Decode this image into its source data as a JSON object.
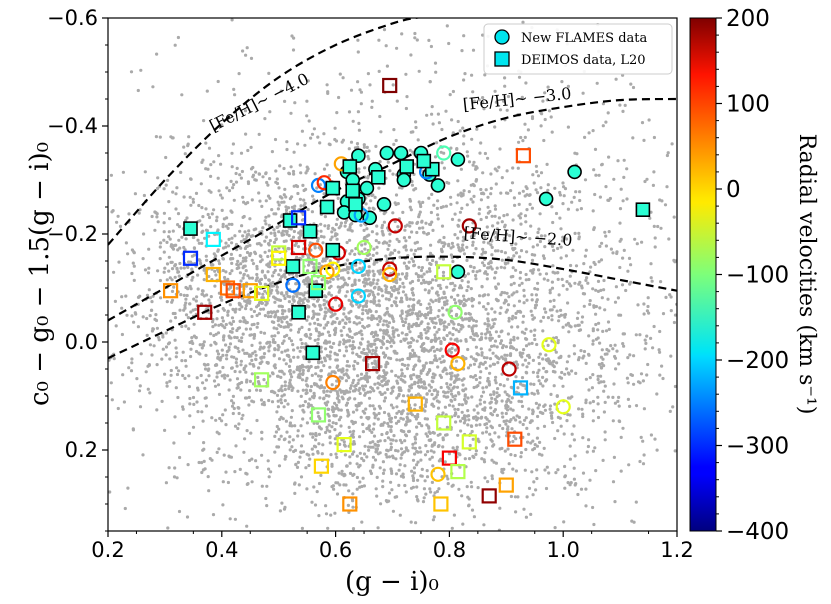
{
  "chart_data": {
    "type": "scatter",
    "xlabel": "(g − i)₀",
    "ylabel": "c₀ − g₀ − 1.5(g − i)₀",
    "xlim": [
      0.2,
      1.2
    ],
    "ylim": [
      0.35,
      -0.6
    ],
    "x_ticks": [
      0.2,
      0.4,
      0.6,
      0.8,
      1.0,
      1.2
    ],
    "x_tick_labels": [
      "0.2",
      "0.4",
      "0.6",
      "0.8",
      "1.0",
      "1.2"
    ],
    "y_ticks": [
      -0.6,
      -0.4,
      -0.2,
      0.0,
      0.2
    ],
    "y_tick_labels": [
      "−0.6",
      "−0.4",
      "−0.2",
      "0.0",
      "0.2"
    ],
    "colorbar": {
      "label": "Radial velocities (km s⁻¹)",
      "range": [
        -400,
        200
      ],
      "ticks": [
        200,
        100,
        0,
        -100,
        -200,
        -300,
        -400
      ],
      "tick_labels": [
        "200",
        "100",
        "0",
        "−100",
        "−200",
        "−300",
        "−400"
      ],
      "colormap": "jet"
    },
    "legend": {
      "position": "top-right",
      "entries": [
        {
          "label": "New FLAMES data",
          "marker": "circle",
          "color": "#00e5ee"
        },
        {
          "label": "DEIMOS data, L20",
          "marker": "square",
          "color": "#00e5ee"
        }
      ]
    },
    "annotations": [
      {
        "text": "[Fe/H]∼ −4.0",
        "x": 0.47,
        "y": -0.435,
        "rotation": -27
      },
      {
        "text": "[Fe/H]∼ −3.0",
        "x": 0.92,
        "y": -0.44,
        "rotation": -6
      },
      {
        "text": "[Fe/H]∼ −2.0",
        "x": 0.92,
        "y": -0.185,
        "rotation": 4
      }
    ],
    "isochrones": [
      {
        "name": "feh_m4",
        "x": [
          0.2,
          0.3,
          0.4,
          0.5,
          0.6,
          0.7,
          0.75
        ],
        "y": [
          -0.18,
          -0.3,
          -0.405,
          -0.49,
          -0.55,
          -0.59,
          -0.602
        ]
      },
      {
        "name": "feh_m3",
        "x": [
          0.2,
          0.3,
          0.4,
          0.5,
          0.6,
          0.7,
          0.8,
          0.9,
          1.0,
          1.1,
          1.2
        ],
        "y": [
          -0.04,
          -0.1,
          -0.16,
          -0.22,
          -0.28,
          -0.33,
          -0.38,
          -0.415,
          -0.435,
          -0.448,
          -0.45
        ]
      },
      {
        "name": "feh_m2",
        "x": [
          0.2,
          0.3,
          0.4,
          0.5,
          0.6,
          0.7,
          0.8,
          0.9,
          1.0,
          1.1,
          1.2
        ],
        "y": [
          0.03,
          -0.02,
          -0.07,
          -0.11,
          -0.14,
          -0.155,
          -0.158,
          -0.152,
          -0.135,
          -0.115,
          -0.095
        ]
      }
    ],
    "background_stars": {
      "color": "#aaaaaa",
      "description": "field-star cloud"
    },
    "series": [
      {
        "name": "New FLAMES data",
        "marker": "circle",
        "points": [
          {
            "x": 0.64,
            "y": -0.345,
            "v": -150
          },
          {
            "x": 0.69,
            "y": -0.35,
            "v": -150
          },
          {
            "x": 0.715,
            "y": -0.35,
            "v": -150
          },
          {
            "x": 0.75,
            "y": -0.35,
            "v": -150
          },
          {
            "x": 0.815,
            "y": -0.338,
            "v": -150
          },
          {
            "x": 0.67,
            "y": -0.32,
            "v": -150
          },
          {
            "x": 0.62,
            "y": -0.315,
            "v": -150
          },
          {
            "x": 0.72,
            "y": -0.31,
            "v": -150
          },
          {
            "x": 0.765,
            "y": -0.31,
            "v": -150
          },
          {
            "x": 0.63,
            "y": -0.3,
            "v": -150
          },
          {
            "x": 0.655,
            "y": -0.285,
            "v": -150
          },
          {
            "x": 0.72,
            "y": -0.3,
            "v": -150
          },
          {
            "x": 0.78,
            "y": -0.29,
            "v": -150
          },
          {
            "x": 0.64,
            "y": -0.265,
            "v": -150
          },
          {
            "x": 0.62,
            "y": -0.26,
            "v": -150
          },
          {
            "x": 0.685,
            "y": -0.255,
            "v": -150
          },
          {
            "x": 0.615,
            "y": -0.24,
            "v": -150
          },
          {
            "x": 0.635,
            "y": -0.235,
            "v": -150
          },
          {
            "x": 0.66,
            "y": -0.23,
            "v": -150
          },
          {
            "x": 1.02,
            "y": -0.315,
            "v": -150
          },
          {
            "x": 0.97,
            "y": -0.265,
            "v": -150
          },
          {
            "x": 0.815,
            "y": -0.13,
            "v": -150
          },
          {
            "x": 0.79,
            "y": -0.35,
            "v": -130
          },
          {
            "x": 0.76,
            "y": -0.315,
            "v": -250
          },
          {
            "x": 0.57,
            "y": -0.29,
            "v": -250
          },
          {
            "x": 0.58,
            "y": -0.295,
            "v": 100
          },
          {
            "x": 0.61,
            "y": -0.33,
            "v": 30
          },
          {
            "x": 0.645,
            "y": -0.235,
            "v": -230
          },
          {
            "x": 0.65,
            "y": -0.175,
            "v": -80
          },
          {
            "x": 0.565,
            "y": -0.17,
            "v": 80
          },
          {
            "x": 0.605,
            "y": -0.165,
            "v": 150
          },
          {
            "x": 0.705,
            "y": -0.215,
            "v": 160
          },
          {
            "x": 0.835,
            "y": -0.215,
            "v": 180
          },
          {
            "x": 0.695,
            "y": -0.135,
            "v": 160
          },
          {
            "x": 0.695,
            "y": -0.125,
            "v": 20
          },
          {
            "x": 0.64,
            "y": -0.14,
            "v": -200
          },
          {
            "x": 0.595,
            "y": -0.135,
            "v": -20
          },
          {
            "x": 0.585,
            "y": -0.13,
            "v": 30
          },
          {
            "x": 0.525,
            "y": -0.105,
            "v": -260
          },
          {
            "x": 0.64,
            "y": -0.085,
            "v": -200
          },
          {
            "x": 0.6,
            "y": -0.07,
            "v": 140
          },
          {
            "x": 0.81,
            "y": -0.055,
            "v": -90
          },
          {
            "x": 0.805,
            "y": 0.015,
            "v": 130
          },
          {
            "x": 0.815,
            "y": 0.04,
            "v": 20
          },
          {
            "x": 0.905,
            "y": 0.05,
            "v": 165
          },
          {
            "x": 0.975,
            "y": 0.005,
            "v": -40
          },
          {
            "x": 0.595,
            "y": 0.075,
            "v": 50
          },
          {
            "x": 1.0,
            "y": 0.12,
            "v": -40
          },
          {
            "x": 0.78,
            "y": 0.245,
            "v": 10
          }
        ]
      },
      {
        "name": "DEIMOS data, L20",
        "marker": "square",
        "points": [
          {
            "x": 0.625,
            "y": -0.325,
            "v": -150
          },
          {
            "x": 0.595,
            "y": -0.285,
            "v": -150
          },
          {
            "x": 0.63,
            "y": -0.28,
            "v": -150
          },
          {
            "x": 0.675,
            "y": -0.305,
            "v": -150
          },
          {
            "x": 0.725,
            "y": -0.325,
            "v": -150
          },
          {
            "x": 0.77,
            "y": -0.32,
            "v": -150
          },
          {
            "x": 0.755,
            "y": -0.335,
            "v": -150
          },
          {
            "x": 0.585,
            "y": -0.25,
            "v": -150
          },
          {
            "x": 0.635,
            "y": -0.255,
            "v": -150
          },
          {
            "x": 0.52,
            "y": -0.225,
            "v": -150
          },
          {
            "x": 0.555,
            "y": -0.205,
            "v": -150
          },
          {
            "x": 0.595,
            "y": -0.17,
            "v": -150
          },
          {
            "x": 0.525,
            "y": -0.14,
            "v": -150
          },
          {
            "x": 0.565,
            "y": -0.095,
            "v": -150
          },
          {
            "x": 0.535,
            "y": -0.055,
            "v": -150
          },
          {
            "x": 0.56,
            "y": 0.02,
            "v": -150
          },
          {
            "x": 1.14,
            "y": -0.245,
            "v": -150
          },
          {
            "x": 0.345,
            "y": -0.21,
            "v": -150
          },
          {
            "x": 0.695,
            "y": -0.475,
            "v": 200
          },
          {
            "x": 0.93,
            "y": -0.345,
            "v": 80
          },
          {
            "x": 0.535,
            "y": -0.23,
            "v": -300
          },
          {
            "x": 0.345,
            "y": -0.155,
            "v": -300
          },
          {
            "x": 0.385,
            "y": -0.19,
            "v": -180
          },
          {
            "x": 0.535,
            "y": -0.175,
            "v": 150
          },
          {
            "x": 0.5,
            "y": -0.165,
            "v": -60
          },
          {
            "x": 0.5,
            "y": -0.155,
            "v": -20
          },
          {
            "x": 0.555,
            "y": -0.14,
            "v": -90
          },
          {
            "x": 0.57,
            "y": -0.11,
            "v": -90
          },
          {
            "x": 0.385,
            "y": -0.125,
            "v": 20
          },
          {
            "x": 0.41,
            "y": -0.1,
            "v": 60
          },
          {
            "x": 0.42,
            "y": -0.095,
            "v": 80
          },
          {
            "x": 0.45,
            "y": -0.095,
            "v": 30
          },
          {
            "x": 0.47,
            "y": -0.09,
            "v": -40
          },
          {
            "x": 0.31,
            "y": -0.095,
            "v": 40
          },
          {
            "x": 0.37,
            "y": -0.055,
            "v": 180
          },
          {
            "x": 0.665,
            "y": 0.04,
            "v": 180
          },
          {
            "x": 0.47,
            "y": 0.07,
            "v": -80
          },
          {
            "x": 0.74,
            "y": 0.115,
            "v": 20
          },
          {
            "x": 0.925,
            "y": 0.085,
            "v": -220
          },
          {
            "x": 0.79,
            "y": -0.13,
            "v": -60
          },
          {
            "x": 0.57,
            "y": 0.135,
            "v": -90
          },
          {
            "x": 0.79,
            "y": 0.15,
            "v": -60
          },
          {
            "x": 0.615,
            "y": 0.19,
            "v": -40
          },
          {
            "x": 0.835,
            "y": 0.185,
            "v": -50
          },
          {
            "x": 0.915,
            "y": 0.18,
            "v": 80
          },
          {
            "x": 0.575,
            "y": 0.23,
            "v": 0
          },
          {
            "x": 0.8,
            "y": 0.215,
            "v": 130
          },
          {
            "x": 0.815,
            "y": 0.24,
            "v": -70
          },
          {
            "x": 0.9,
            "y": 0.265,
            "v": 30
          },
          {
            "x": 0.87,
            "y": 0.285,
            "v": 190
          },
          {
            "x": 0.625,
            "y": 0.3,
            "v": 40
          },
          {
            "x": 0.785,
            "y": 0.3,
            "v": 10
          }
        ]
      }
    ]
  }
}
